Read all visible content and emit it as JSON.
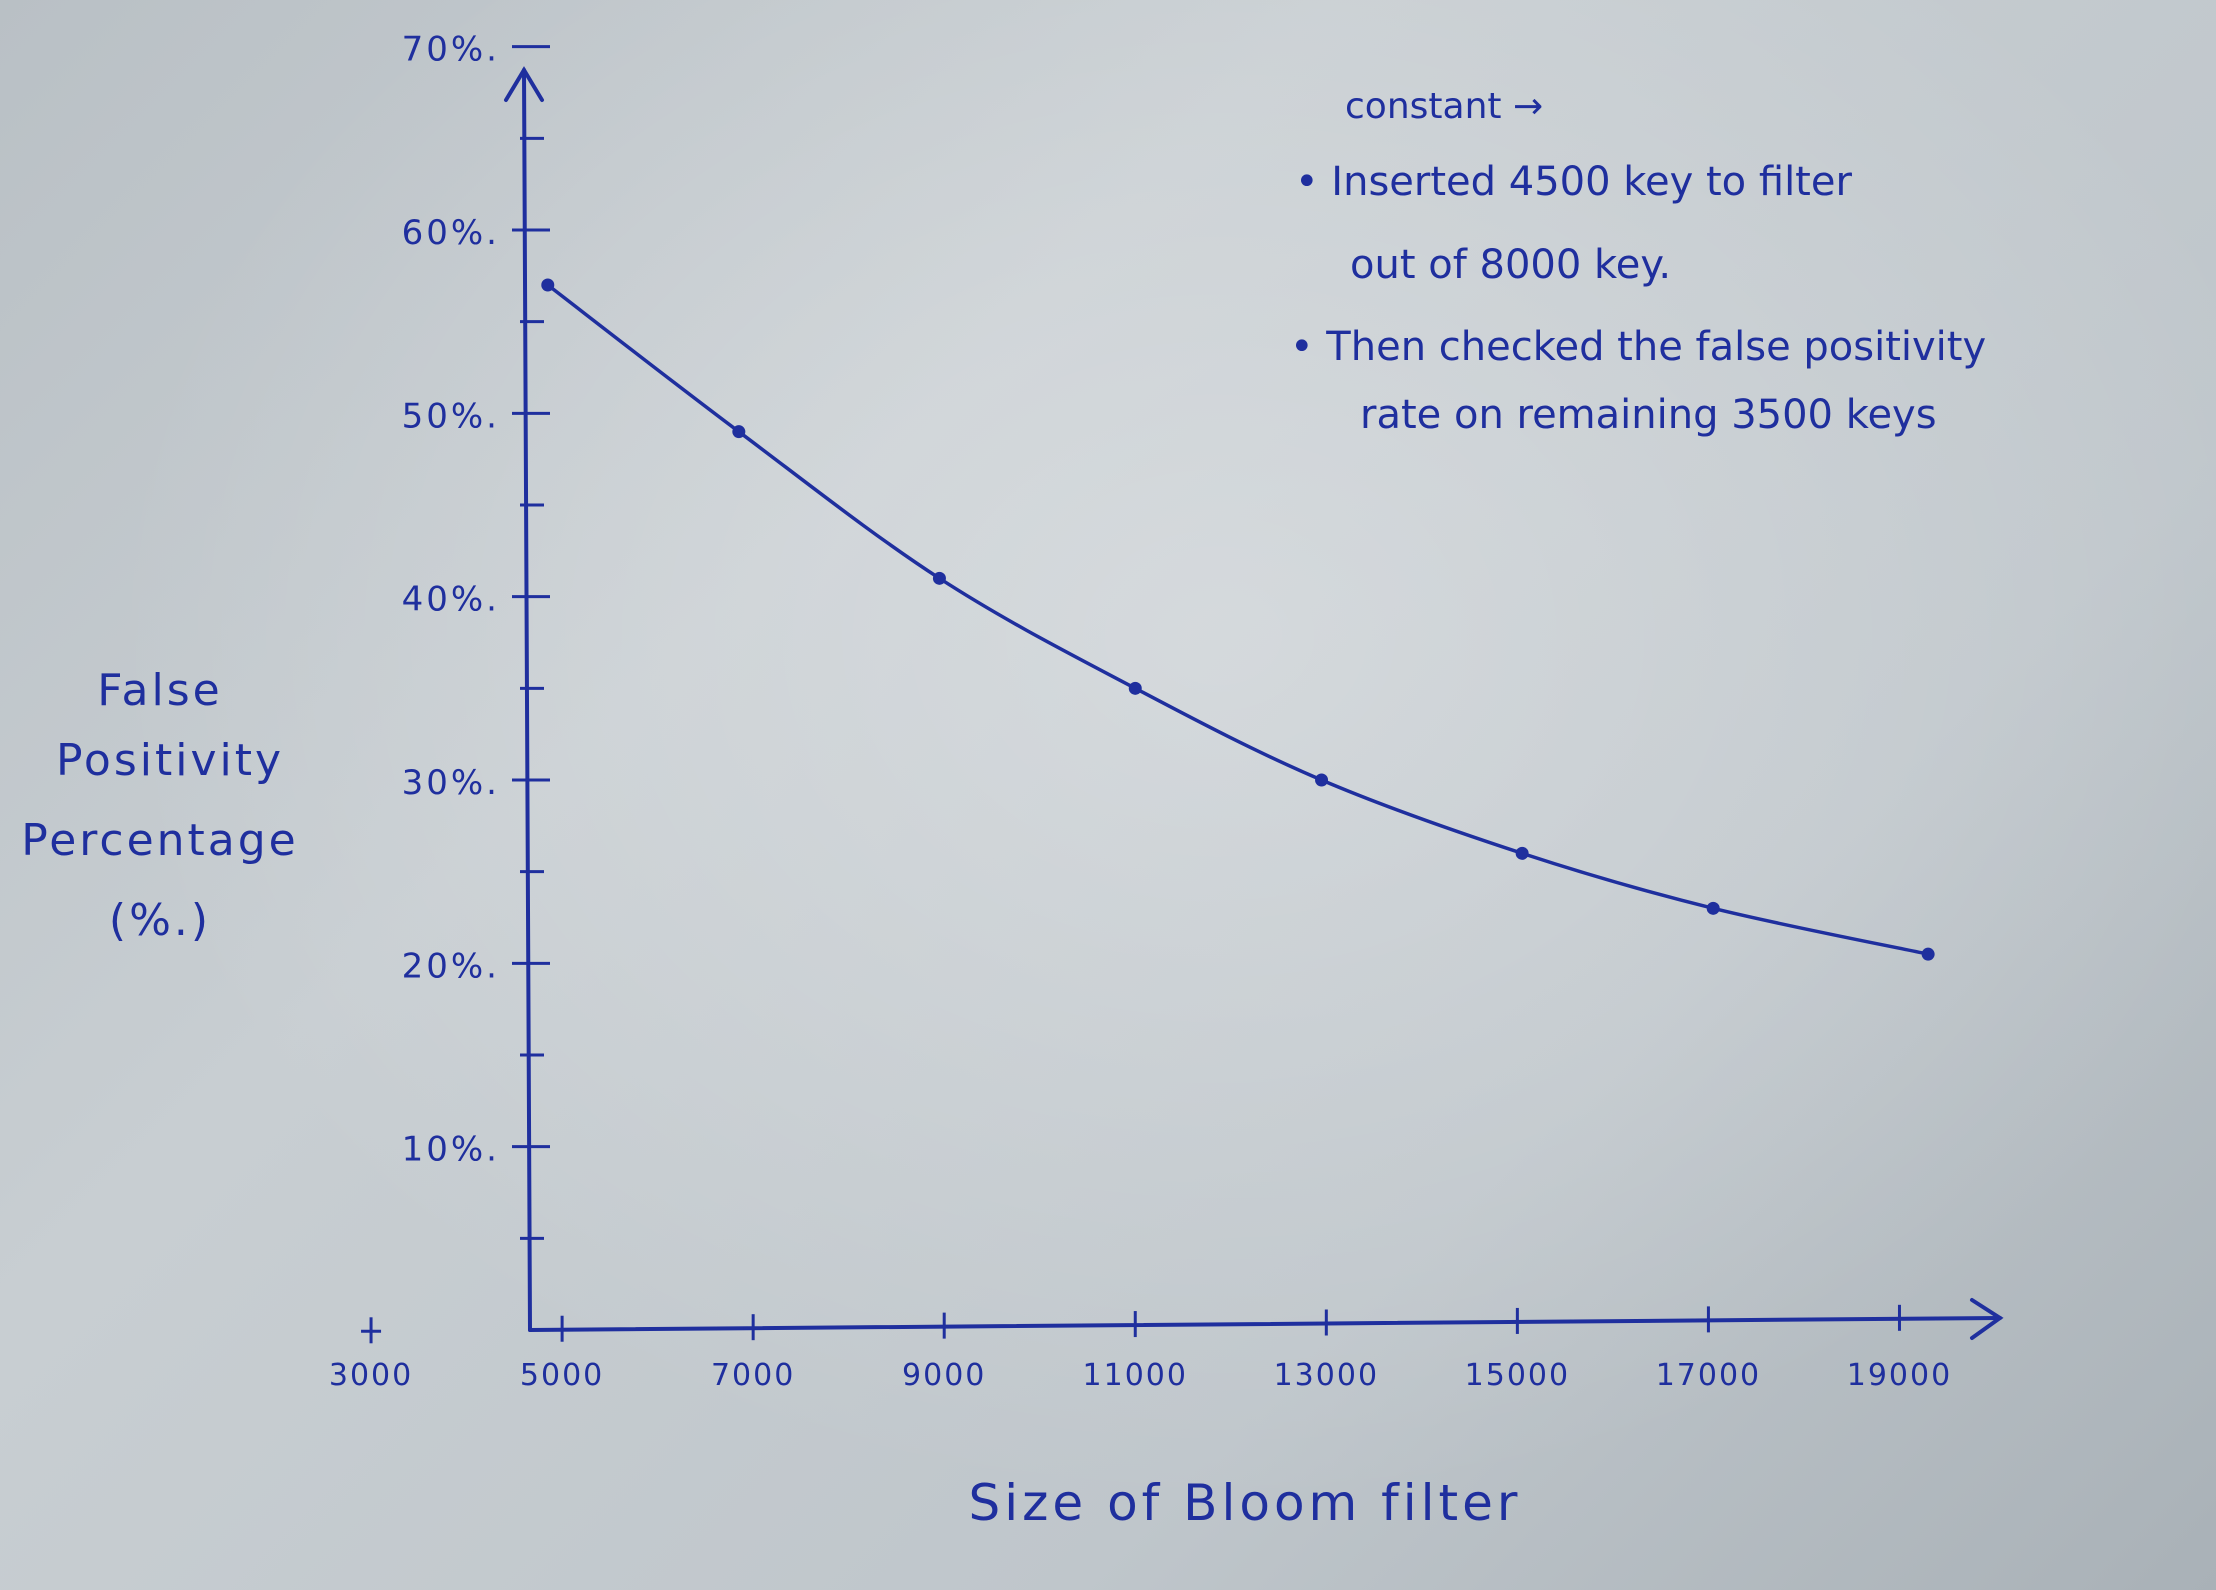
{
  "chart_data": {
    "type": "line",
    "xlabel": "Size of Bloom filter",
    "ylabel_lines": [
      "False",
      "Positivity",
      "Percentage",
      "(%.)"
    ],
    "x_ticks": [
      "3000",
      "5000",
      "7000",
      "9000",
      "11000",
      "13000",
      "15000",
      "17000",
      "19000"
    ],
    "y_ticks": [
      "10%.",
      "20%.",
      "30%.",
      "40%.",
      "50%.",
      "60%.",
      "70%."
    ],
    "xlim": [
      1000,
      20000
    ],
    "ylim": [
      0,
      72
    ],
    "series": [
      {
        "x": [
          4850,
          6850,
          8950,
          11000,
          12950,
          15050,
          17050,
          19300
        ],
        "y": [
          57,
          49,
          41,
          35,
          30,
          26,
          23,
          20.5
        ]
      }
    ],
    "grid": false,
    "line_color": "#1f2f9e"
  },
  "note": {
    "header": "constant →",
    "lines": [
      "• Inserted 4500 key to filter",
      "out of 8000 key.",
      "• Then checked the false positivity",
      "rate on remaining 3500 keys"
    ]
  }
}
